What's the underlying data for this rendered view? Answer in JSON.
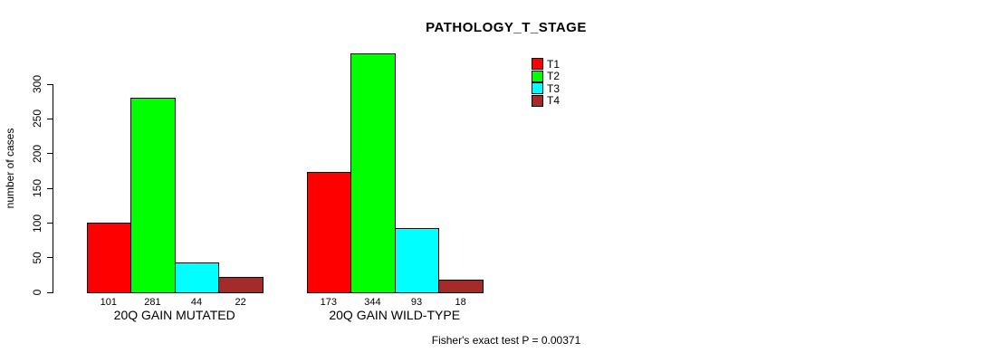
{
  "chart_data": {
    "type": "bar",
    "title": "PATHOLOGY_T_STAGE",
    "ylabel": "number of cases",
    "xlabel": "",
    "ylim": [
      0,
      300
    ],
    "yticks": [
      0,
      50,
      100,
      150,
      200,
      250,
      300
    ],
    "grid": false,
    "legend_position": "top-right",
    "categories": [
      "20Q GAIN MUTATED",
      "20Q GAIN WILD-TYPE"
    ],
    "series": [
      {
        "name": "T1",
        "color": "#ff0000",
        "values": [
          101,
          173
        ]
      },
      {
        "name": "T2",
        "color": "#00ff00",
        "values": [
          281,
          344
        ]
      },
      {
        "name": "T3",
        "color": "#00ffff",
        "values": [
          44,
          93
        ]
      },
      {
        "name": "T4",
        "color": "#a52a2a",
        "values": [
          22,
          18
        ]
      }
    ],
    "bar_value_labels": [
      [
        101,
        281,
        44,
        22
      ],
      [
        173,
        344,
        93,
        18
      ]
    ],
    "annotation": "Fisher's exact test P = 0.00371"
  }
}
